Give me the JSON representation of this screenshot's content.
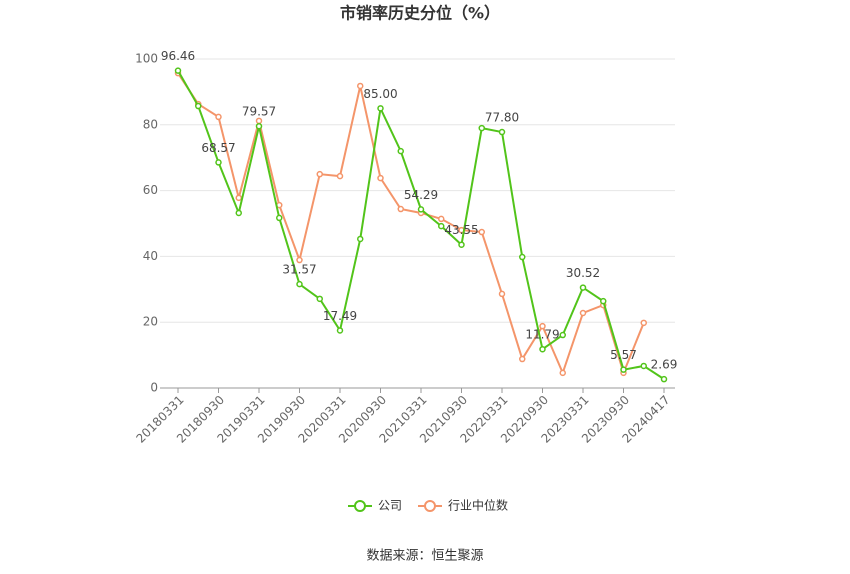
{
  "chart_data": {
    "type": "line",
    "title": "市销率历史分位（%）",
    "source": "数据来源：恒生聚源",
    "categories": [
      "20180331",
      null,
      "20180930",
      null,
      "20190331",
      null,
      "20190930",
      null,
      "20200331",
      null,
      "20200930",
      null,
      "20210331",
      null,
      "20210930",
      null,
      "20220331",
      null,
      "20220930",
      null,
      "20230331",
      null,
      "20230930",
      null,
      "20240417"
    ],
    "series": [
      {
        "name": "公司",
        "color": "#52c41a",
        "values": [
          96.46,
          85.7,
          68.57,
          53.2,
          79.57,
          51.7,
          31.57,
          27.1,
          17.49,
          45.3,
          85,
          72.0,
          54.29,
          49.2,
          43.55,
          79.0,
          77.8,
          39.8,
          11.79,
          16.1,
          30.52,
          26.4,
          5.57,
          6.7,
          2.69
        ],
        "value_labels": [
          "96.46",
          null,
          "68.57",
          null,
          "79.57",
          null,
          "31.57",
          null,
          "17.49",
          null,
          "85.00",
          null,
          "54.29",
          null,
          "43.55",
          null,
          "77.80",
          null,
          "11.79",
          null,
          "30.52",
          null,
          "5.57",
          null,
          "2.69"
        ]
      },
      {
        "name": "行业中位数",
        "color": "#f4956a",
        "values": [
          95.7,
          86.3,
          82.4,
          57.8,
          81.2,
          55.6,
          38.9,
          65.0,
          64.4,
          91.8,
          63.8,
          54.4,
          53.2,
          51.4,
          48.0,
          47.4,
          28.6,
          8.8,
          18.8,
          4.6,
          22.8,
          25.2,
          4.6,
          19.8,
          null
        ]
      }
    ],
    "ylim": [
      0,
      100
    ],
    "yticks": [
      0,
      20,
      40,
      60,
      80,
      100
    ],
    "grid": true
  }
}
